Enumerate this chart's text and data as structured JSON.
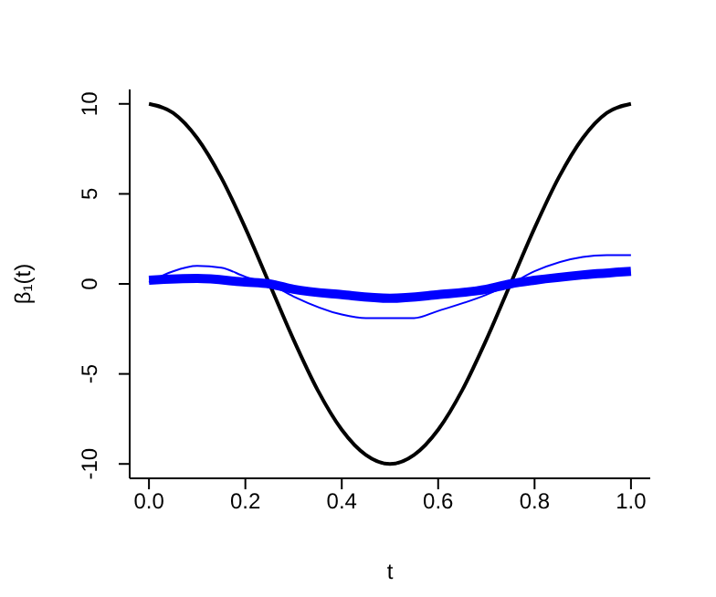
{
  "chart_data": {
    "type": "line",
    "xlabel": "t",
    "ylabel": "β₁(t)",
    "xlim": [
      -0.04,
      1.04
    ],
    "ylim": [
      -10.8,
      10.8
    ],
    "xticks": [
      {
        "value": 0,
        "label": "0.0"
      },
      {
        "value": 0.2,
        "label": "0.2"
      },
      {
        "value": 0.4,
        "label": "0.4"
      },
      {
        "value": 0.6,
        "label": "0.6"
      },
      {
        "value": 0.8,
        "label": "0.8"
      },
      {
        "value": 1,
        "label": "1.0"
      }
    ],
    "yticks": [
      -10,
      -5,
      0,
      5,
      10
    ],
    "grid": false,
    "legend": false,
    "marker": "none",
    "line_style": "solid",
    "series": [
      {
        "color": "#000000",
        "x": [
          0,
          0.05,
          0.1,
          0.15,
          0.2,
          0.25,
          0.3,
          0.35,
          0.4,
          0.45,
          0.5,
          0.55,
          0.6,
          0.65,
          0.7,
          0.75,
          0.8,
          0.85,
          0.9,
          0.95,
          1
        ],
        "values": [
          10,
          9.5,
          8.1,
          5.9,
          3.1,
          0,
          -3.1,
          -5.9,
          -8.1,
          -9.5,
          -10,
          -9.5,
          -8.1,
          -5.9,
          -3.1,
          0,
          3.1,
          5.9,
          8.1,
          9.5,
          10
        ]
      },
      {
        "color": "#0000ff",
        "x": [
          0,
          0.1,
          0.2,
          0.25,
          0.3,
          0.4,
          0.5,
          0.6,
          0.7,
          0.75,
          0.8,
          0.9,
          1
        ],
        "values": [
          0.2,
          0.3,
          0.1,
          0,
          -0.3,
          -0.6,
          -0.8,
          -0.6,
          -0.3,
          0,
          0.2,
          0.5,
          0.7
        ]
      },
      {
        "color": "#0000ff",
        "x": [
          0,
          0.05,
          0.1,
          0.15,
          0.2,
          0.25,
          0.3,
          0.4,
          0.45,
          0.5,
          0.55,
          0.6,
          0.7,
          0.75,
          0.8,
          0.9,
          0.95,
          1
        ],
        "values": [
          0.1,
          0.7,
          1,
          0.9,
          0.4,
          0,
          -0.7,
          -1.7,
          -1.9,
          -1.9,
          -1.9,
          -1.5,
          -0.6,
          0,
          0.7,
          1.5,
          1.6,
          1.6
        ]
      }
    ]
  }
}
